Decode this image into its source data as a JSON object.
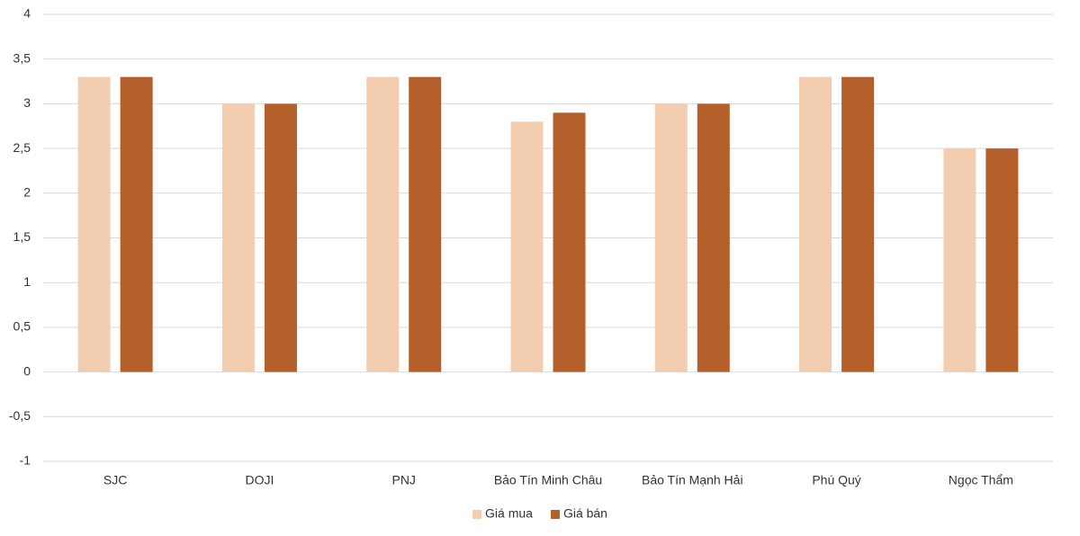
{
  "chart_data": {
    "type": "bar",
    "categories": [
      "SJC",
      "DOJI",
      "PNJ",
      "Bảo Tín Minh Châu",
      "Bảo Tín Mạnh Hải",
      "Phú Quý",
      "Ngọc Thẩm"
    ],
    "series": [
      {
        "name": "Giá mua",
        "color": "#f2cdb0",
        "values": [
          3.3,
          3,
          3.3,
          2.8,
          3,
          3.3,
          2.5
        ]
      },
      {
        "name": "Giá bán",
        "color": "#b5602a",
        "values": [
          3.3,
          3,
          3.3,
          2.9,
          3,
          3.3,
          2.5
        ]
      }
    ],
    "ylim": [
      -1,
      4
    ],
    "yticks": [
      -1,
      {
        "value": -0.5,
        "label": "-0,5"
      },
      0,
      {
        "value": 0.5,
        "label": "0,5"
      },
      1,
      {
        "value": 1.5,
        "label": "1,5"
      },
      2,
      {
        "value": 2.5,
        "label": "2,5"
      },
      3,
      {
        "value": 3.5,
        "label": "3,5"
      },
      4
    ],
    "grid": true,
    "legend": "bottom"
  }
}
